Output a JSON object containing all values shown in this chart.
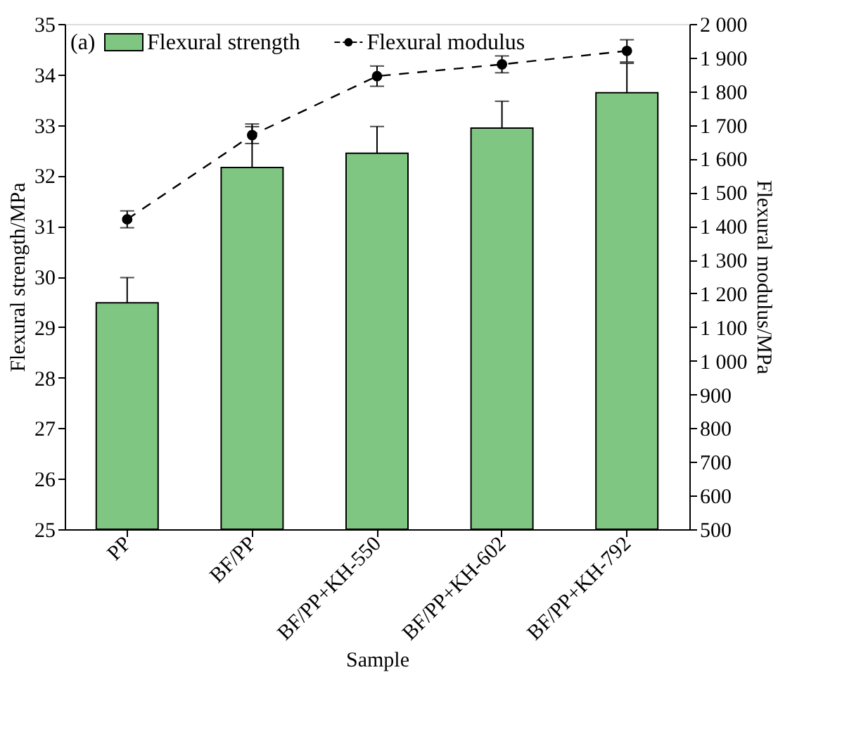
{
  "chart_data": {
    "type": "bar",
    "xlabel": "Sample",
    "ylabel": "Flexural strength/MPa",
    "y2label": "Flexural modulus/MPa",
    "categories": [
      "PP",
      "BF/PP",
      "BF/PP+KH-550",
      "BF/PP+KH-602",
      "BF/PP+KH-792"
    ],
    "series": [
      {
        "name": "Flexural strength",
        "color": "#80c683",
        "values": [
          29.48,
          32.16,
          32.44,
          32.94,
          33.64
        ],
        "errors": [
          0.5,
          0.86,
          0.53,
          0.53,
          0.58
        ]
      },
      {
        "name": "Flexural modulus",
        "type": "line",
        "axis": "y2",
        "color": "#000000",
        "marker": "circle",
        "line_style": "dashed",
        "values": [
          1420,
          1670,
          1845,
          1880,
          1920
        ],
        "errors": [
          25,
          25,
          30,
          25,
          33
        ]
      }
    ],
    "ylim": [
      25,
      35
    ],
    "yticks": [
      25,
      26,
      27,
      28,
      29,
      30,
      31,
      32,
      33,
      34,
      35
    ],
    "y2lim": [
      500,
      2000
    ],
    "y2ticks": [
      500,
      600,
      700,
      800,
      900,
      {
        "value": 1000,
        "label": "1 000"
      },
      {
        "value": 1100,
        "label": "1 100"
      },
      {
        "value": 1200,
        "label": "1 200"
      },
      {
        "value": 1300,
        "label": "1 300"
      },
      {
        "value": 1400,
        "label": "1 400"
      },
      {
        "value": 1500,
        "label": "1 500"
      },
      {
        "value": 1600,
        "label": "1 600"
      },
      {
        "value": 1700,
        "label": "1 700"
      },
      {
        "value": 1800,
        "label": "1 800"
      },
      {
        "value": 1900,
        "label": "1 900"
      },
      {
        "value": 2000,
        "label": "2 000"
      }
    ],
    "annotations": [
      "(a)"
    ],
    "grid": false,
    "legend": "top left"
  }
}
